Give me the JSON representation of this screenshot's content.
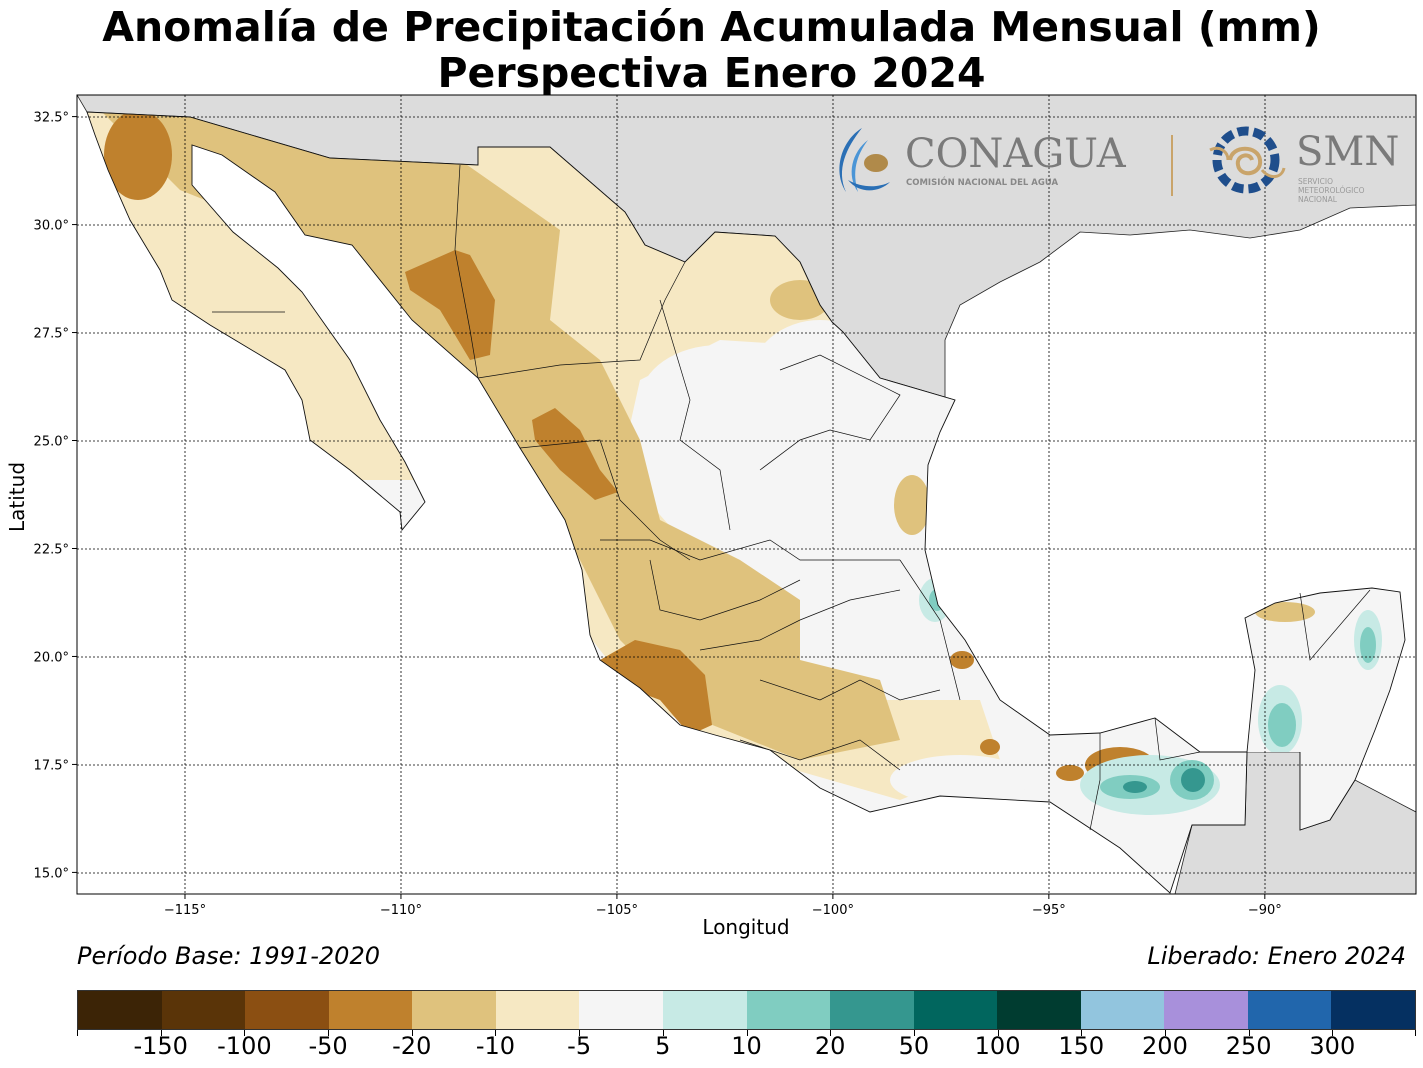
{
  "title_line1": "Anomalía de Precipitación Acumulada Mensual (mm)",
  "title_line2": "Perspectiva Enero 2024",
  "axes": {
    "xlabel": "Longitud",
    "ylabel": "Latitud",
    "xlim": [
      -117.5,
      -86.5
    ],
    "ylim": [
      14.5,
      33.0
    ],
    "xticks": [
      {
        "value": -115,
        "label": "−115°"
      },
      {
        "value": -110,
        "label": "−110°"
      },
      {
        "value": -105,
        "label": "−105°"
      },
      {
        "value": -100,
        "label": "−100°"
      },
      {
        "value": -95,
        "label": "−95°"
      },
      {
        "value": -90,
        "label": "−90°"
      }
    ],
    "yticks": [
      {
        "value": 32.5,
        "label": "32.5°"
      },
      {
        "value": 30.0,
        "label": "30.0°"
      },
      {
        "value": 27.5,
        "label": "27.5°"
      },
      {
        "value": 25.0,
        "label": "25.0°"
      },
      {
        "value": 22.5,
        "label": "22.5°"
      },
      {
        "value": 20.0,
        "label": "20.0°"
      },
      {
        "value": 17.5,
        "label": "17.5°"
      },
      {
        "value": 15.0,
        "label": "15.0°"
      }
    ]
  },
  "logos": {
    "conagua_name": "CONAGUA",
    "conagua_sub": "COMISIÓN NACIONAL DEL AGUA",
    "smn_name": "SMN",
    "smn_sub1": "SERVICIO",
    "smn_sub2": "METEOROLÓGICO",
    "smn_sub3": "NACIONAL"
  },
  "footer": {
    "base_period": "Período Base: 1991-2020",
    "released": "Liberado: Enero 2024"
  },
  "colorbar": {
    "colors": [
      "#3c2406",
      "#5a3408",
      "#8b4f12",
      "#bf812d",
      "#dfc27d",
      "#f6e8c3",
      "#f5f5f5",
      "#c7eae5",
      "#80cdc1",
      "#35978f",
      "#01665e",
      "#003c30",
      "#92c5de",
      "#a890db",
      "#2166ac",
      "#053061"
    ],
    "labels": [
      "-150",
      "-100",
      "-50",
      "-20",
      "-10",
      "-5",
      "5",
      "10",
      "20",
      "50",
      "100",
      "150",
      "200",
      "250",
      "300"
    ]
  },
  "colors": {
    "land_outside": "#dcdcdc",
    "water": "#ffffff"
  },
  "chart_data": {
    "type": "heatmap",
    "title": "Anomalía de Precipitación Acumulada Mensual (mm) Perspectiva Enero 2024",
    "xlabel": "Longitud",
    "ylabel": "Latitud",
    "xlim": [
      -117.5,
      -86.5
    ],
    "ylim": [
      14.5,
      33.0
    ],
    "grid": true,
    "value_bins_mm": [
      -150,
      -100,
      -50,
      -20,
      -10,
      -5,
      5,
      10,
      20,
      50,
      100,
      150,
      200,
      250,
      300
    ],
    "anomaly_areas": [
      {
        "lon": -116.3,
        "lat": 31.6,
        "value": -50
      },
      {
        "lon": -108.4,
        "lat": 28.1,
        "value": -50
      },
      {
        "lon": -106.0,
        "lat": 24.8,
        "value": -50
      },
      {
        "lon": -103.8,
        "lat": 19.3,
        "value": -50
      },
      {
        "lon": -93.0,
        "lat": 17.3,
        "value": -50
      },
      {
        "lon": -91.7,
        "lat": 17.0,
        "value": 50
      },
      {
        "lon": -93.0,
        "lat": 16.9,
        "value": 20
      },
      {
        "lon": -97.8,
        "lat": 21.2,
        "value": 10
      },
      {
        "lon": -89.8,
        "lat": 18.4,
        "value": 20
      },
      {
        "lon": -88.0,
        "lat": 20.5,
        "value": 10
      }
    ]
  }
}
